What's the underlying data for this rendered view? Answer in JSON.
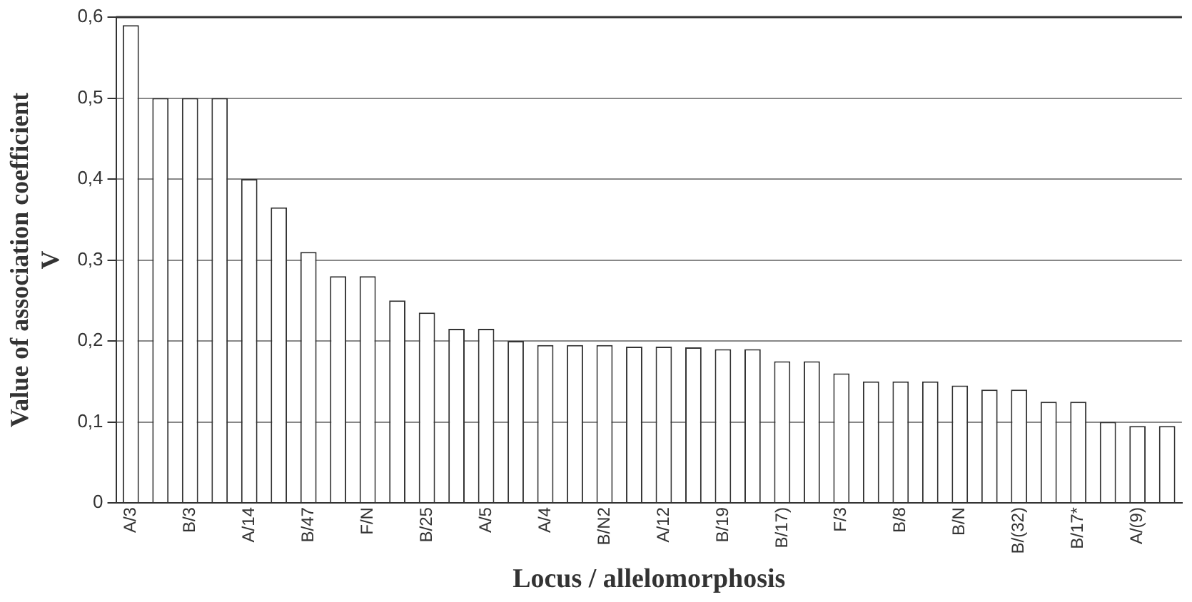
{
  "chart_data": {
    "type": "bar",
    "xlabel": "Locus / allelomorphosis",
    "ylabel": "Value of association coefficient\nV",
    "categories": [
      "A/3",
      null,
      "B/3",
      null,
      "A/14",
      null,
      "B/47",
      null,
      "F/N",
      null,
      "B/25",
      null,
      "A/5",
      null,
      "A/4",
      null,
      "B/N2",
      null,
      "A/12",
      null,
      "B/19",
      null,
      "B/17)",
      null,
      "F/3",
      null,
      "B/8",
      null,
      "B/N",
      null,
      "B/(32)",
      null,
      "B/17*",
      null,
      "A/(9)",
      null
    ],
    "values": [
      0.59,
      0.5,
      0.5,
      0.5,
      0.4,
      0.365,
      0.31,
      0.28,
      0.28,
      0.25,
      0.235,
      0.215,
      0.215,
      0.2,
      0.195,
      0.195,
      0.195,
      0.193,
      0.193,
      0.192,
      0.19,
      0.19,
      0.175,
      0.175,
      0.16,
      0.15,
      0.15,
      0.15,
      0.145,
      0.14,
      0.14,
      0.125,
      0.125,
      0.1,
      0.095,
      0.095
    ],
    "color": "#ffffff",
    "ylim": [
      0,
      0.6
    ],
    "yticks": [
      0,
      {
        "value": 0.1,
        "label": "0,1"
      },
      {
        "value": 0.2,
        "label": "0,2"
      },
      {
        "value": 0.3,
        "label": "0,3"
      },
      {
        "value": 0.4,
        "label": "0,4"
      },
      {
        "value": 0.5,
        "label": "0,5"
      },
      {
        "value": 0.6,
        "label": "0,6"
      }
    ],
    "grid": "y",
    "legend": false
  }
}
